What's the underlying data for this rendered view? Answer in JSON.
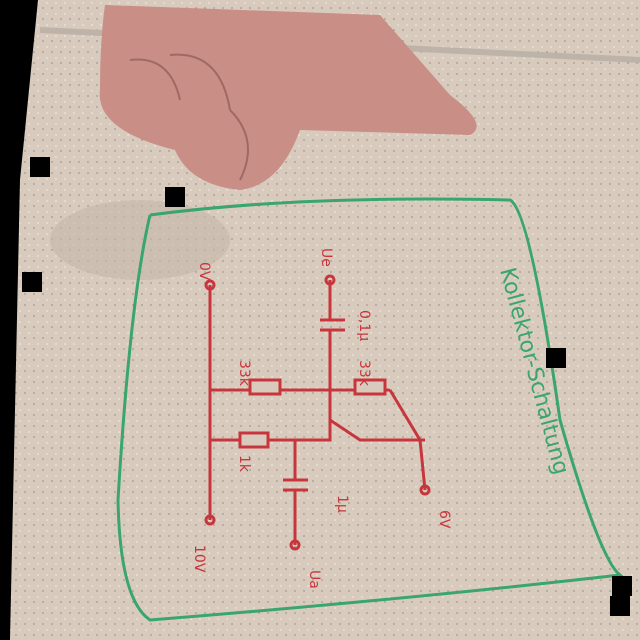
{
  "title": "Kollektor-Schaltung",
  "labels": {
    "top_supply": "0V",
    "input": "Ue",
    "cap_top": "0,1µ",
    "r_left": "33k",
    "r_right": "33k",
    "r_emitter": "1k",
    "cap_bottom": "1µ",
    "bottom_supply": "10V",
    "right_supply": "6V",
    "output": "Ua"
  }
}
